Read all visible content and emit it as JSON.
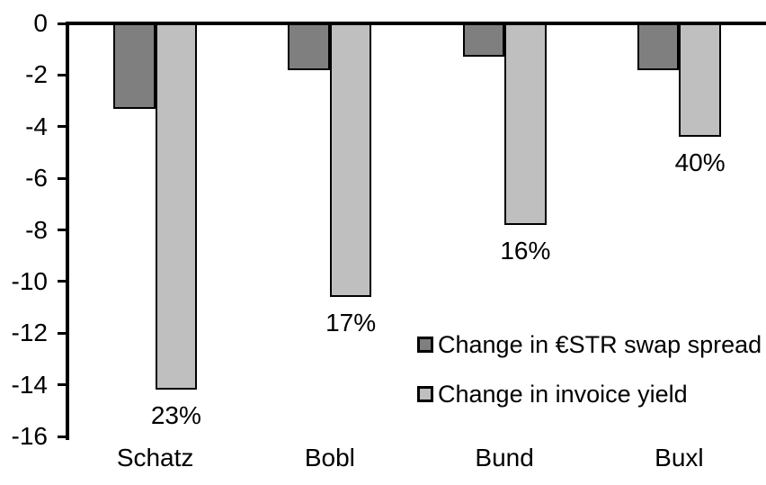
{
  "chart_data": {
    "type": "bar",
    "title": "",
    "xlabel": "",
    "ylabel": "",
    "categories": [
      "Schatz",
      "Bobl",
      "Bund",
      "Buxl"
    ],
    "series": [
      {
        "name": "Change in €STR swap spread",
        "color": "#7f7f7f",
        "values": [
          -3.3,
          -1.8,
          -1.3,
          -1.8
        ]
      },
      {
        "name": "Change in invoice yield",
        "color": "#bfbfbf",
        "values": [
          -14.2,
          -10.6,
          -7.8,
          -4.4
        ]
      }
    ],
    "data_labels": [
      "23%",
      "17%",
      "16%",
      "40%"
    ],
    "data_labels_series": "Change in invoice yield",
    "yticks": [
      0,
      -2,
      -4,
      -6,
      -8,
      -10,
      -12,
      -14,
      -16
    ],
    "ylim": [
      -16,
      0
    ],
    "grid": false,
    "legend_position": "inside-right",
    "bar_border_color": "#000000",
    "axis_color": "#000000",
    "background_color": "#ffffff"
  }
}
